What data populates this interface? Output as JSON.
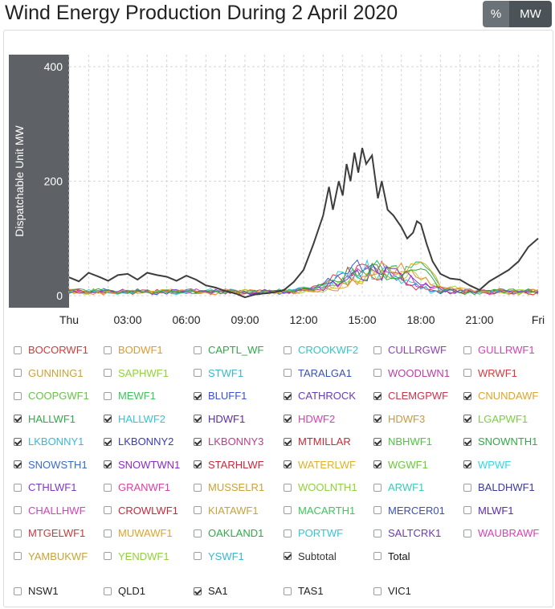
{
  "title": "Wind Energy Production During 2 April 2020",
  "toggle": {
    "percent_label": "%",
    "mw_label": "MW",
    "selected": "MW"
  },
  "colors": {
    "subtotal_line": "#3d3d3d",
    "axis_band": "#5e6266",
    "grid": "#d6d6d6"
  },
  "chart_data": {
    "type": "line",
    "ylabel": "Dispatchable Unit MW",
    "xlabel": "",
    "ylim": [
      0,
      400
    ],
    "yticks": [
      0,
      200,
      400
    ],
    "x_ticks": [
      "Thu",
      "03:00",
      "06:00",
      "09:00",
      "12:00",
      "15:00",
      "18:00",
      "21:00",
      "Fri"
    ],
    "x_hours": [
      0,
      3,
      6,
      9,
      12,
      15,
      18,
      21,
      24
    ],
    "grid": "dashed",
    "series": [
      {
        "name": "Subtotal",
        "color": "#3d3d3d",
        "x": [
          0,
          0.5,
          1,
          1.6,
          2,
          2.5,
          3,
          3.5,
          4,
          4.5,
          5,
          5.5,
          6,
          6.5,
          7,
          7.5,
          8,
          8.5,
          9,
          9.5,
          10,
          10.5,
          11,
          11.5,
          12,
          12.5,
          13,
          13.3,
          13.5,
          13.8,
          14,
          14.2,
          14.4,
          14.6,
          14.8,
          15,
          15.2,
          15.5,
          15.8,
          16,
          16.3,
          16.6,
          17,
          17.3,
          17.6,
          17.8,
          18,
          18.3,
          18.6,
          19,
          19.5,
          20,
          20.5,
          21,
          21.5,
          22,
          22.5,
          23,
          23.5,
          24
        ],
        "y": [
          32,
          25,
          40,
          32,
          26,
          36,
          38,
          28,
          40,
          36,
          33,
          26,
          35,
          28,
          18,
          14,
          8,
          4,
          -3,
          2,
          4,
          6,
          10,
          24,
          45,
          90,
          140,
          190,
          150,
          200,
          175,
          230,
          200,
          250,
          215,
          258,
          230,
          245,
          170,
          200,
          150,
          140,
          120,
          100,
          110,
          130,
          125,
          90,
          60,
          38,
          30,
          28,
          18,
          10,
          25,
          35,
          45,
          60,
          85,
          100
        ]
      }
    ],
    "small_series_colors": [
      "#3355dd",
      "#22bb66",
      "#aadd33",
      "#dd3344",
      "#cc33cc",
      "#ddaa22",
      "#33cccc",
      "#7733cc",
      "#ee8833",
      "#33aa33"
    ],
    "small_series_peak_approx": 55
  },
  "legend": {
    "items": [
      {
        "label": "BOCORWF1",
        "color": "#d23a3a",
        "checked": false
      },
      {
        "label": "BODWF1",
        "color": "#e09a2c",
        "checked": false
      },
      {
        "label": "CAPTL_WF",
        "color": "#2eaa48",
        "checked": false
      },
      {
        "label": "CROOKWF2",
        "color": "#2ec7c9",
        "checked": false
      },
      {
        "label": "CULLRGWF",
        "color": "#8a3fc2",
        "checked": false
      },
      {
        "label": "GULLRWF1",
        "color": "#d83fb8",
        "checked": false
      },
      {
        "label": "GUNNING1",
        "color": "#c8a23a",
        "checked": false
      },
      {
        "label": "SAPHWF1",
        "color": "#8fd13a",
        "checked": false
      },
      {
        "label": "STWF1",
        "color": "#3ab7c8",
        "checked": false
      },
      {
        "label": "TARALGA1",
        "color": "#3a4fb8",
        "checked": false
      },
      {
        "label": "WOODLWN1",
        "color": "#b83fa6",
        "checked": false
      },
      {
        "label": "WRWF1",
        "color": "#d23a3a",
        "checked": false
      },
      {
        "label": "COOPGWF1",
        "color": "#6ac24a",
        "checked": false
      },
      {
        "label": "MEWF1",
        "color": "#3ac85a",
        "checked": false
      },
      {
        "label": "BLUFF1",
        "color": "#3a4fd8",
        "checked": true
      },
      {
        "label": "CATHROCK",
        "color": "#6a3ab8",
        "checked": true
      },
      {
        "label": "CLEMGPWF",
        "color": "#c8344a",
        "checked": true
      },
      {
        "label": "CNUNDAWF",
        "color": "#e0a32a",
        "checked": true
      },
      {
        "label": "HALLWF1",
        "color": "#2eaa48",
        "checked": true
      },
      {
        "label": "HALLWF2",
        "color": "#2ec7d9",
        "checked": true
      },
      {
        "label": "HDWF1",
        "color": "#5a2ab8",
        "checked": true
      },
      {
        "label": "HDWF2",
        "color": "#e03ab8",
        "checked": true
      },
      {
        "label": "HDWF3",
        "color": "#c89a3a",
        "checked": true
      },
      {
        "label": "LGAPWF1",
        "color": "#7ad13a",
        "checked": true
      },
      {
        "label": "LKBONNY1",
        "color": "#3ab7d8",
        "checked": true
      },
      {
        "label": "LKBONNY2",
        "color": "#3a3ab8",
        "checked": true
      },
      {
        "label": "LKBONNY3",
        "color": "#b83f8a",
        "checked": true
      },
      {
        "label": "MTMILLAR",
        "color": "#c8283a",
        "checked": true
      },
      {
        "label": "NBHWF1",
        "color": "#4ac83a",
        "checked": true
      },
      {
        "label": "SNOWNTH1",
        "color": "#2eaa48",
        "checked": true
      },
      {
        "label": "SNOWSTH1",
        "color": "#3a6ac8",
        "checked": true
      },
      {
        "label": "SNOWTWN1",
        "color": "#8a2ac8",
        "checked": true
      },
      {
        "label": "STARHLWF",
        "color": "#c8283a",
        "checked": true
      },
      {
        "label": "WATERLWF",
        "color": "#e0b02a",
        "checked": true
      },
      {
        "label": "WGWF1",
        "color": "#6ac83a",
        "checked": true
      },
      {
        "label": "WPWF",
        "color": "#2ed8e8",
        "checked": true
      },
      {
        "label": "CTHLWF1",
        "color": "#7a3ac8",
        "checked": false
      },
      {
        "label": "GRANWF1",
        "color": "#d83fa6",
        "checked": false
      },
      {
        "label": "MUSSELR1",
        "color": "#c8a23a",
        "checked": false
      },
      {
        "label": "WOOLNTH1",
        "color": "#8fd13a",
        "checked": false
      },
      {
        "label": "ARWF1",
        "color": "#3ac8b8",
        "checked": false
      },
      {
        "label": "BALDHWF1",
        "color": "#3a3a9a",
        "checked": false
      },
      {
        "label": "CHALLHWF",
        "color": "#d83fb8",
        "checked": false
      },
      {
        "label": "CROWLWF1",
        "color": "#c8283a",
        "checked": false
      },
      {
        "label": "KIATAWF1",
        "color": "#c8a23a",
        "checked": false
      },
      {
        "label": "MACARTH1",
        "color": "#3ac85a",
        "checked": false
      },
      {
        "label": "MERCER01",
        "color": "#3a4fb8",
        "checked": false
      },
      {
        "label": "MLWF1",
        "color": "#5a2ab8",
        "checked": false
      },
      {
        "label": "MTGELWF1",
        "color": "#c83a3a",
        "checked": false
      },
      {
        "label": "MUWAWF1",
        "color": "#e0a32a",
        "checked": false
      },
      {
        "label": "OAKLAND1",
        "color": "#2eaa48",
        "checked": false
      },
      {
        "label": "PORTWF",
        "color": "#2ec7d9",
        "checked": false
      },
      {
        "label": "SALTCRK1",
        "color": "#6a3ab8",
        "checked": false
      },
      {
        "label": "WAUBRAWF",
        "color": "#d83fb8",
        "checked": false
      },
      {
        "label": "YAMBUKWF",
        "color": "#c8a23a",
        "checked": false
      },
      {
        "label": "YENDWF1",
        "color": "#8fd13a",
        "checked": false
      },
      {
        "label": "YSWF1",
        "color": "#3ab7c8",
        "checked": false
      },
      {
        "label": "Subtotal",
        "color": "#333333",
        "checked": true
      },
      {
        "label": "Total",
        "color": "#111111",
        "checked": false
      }
    ],
    "regions": [
      {
        "label": "NSW1",
        "checked": false
      },
      {
        "label": "QLD1",
        "checked": false
      },
      {
        "label": "SA1",
        "checked": true
      },
      {
        "label": "TAS1",
        "checked": false
      },
      {
        "label": "VIC1",
        "checked": false
      }
    ]
  }
}
